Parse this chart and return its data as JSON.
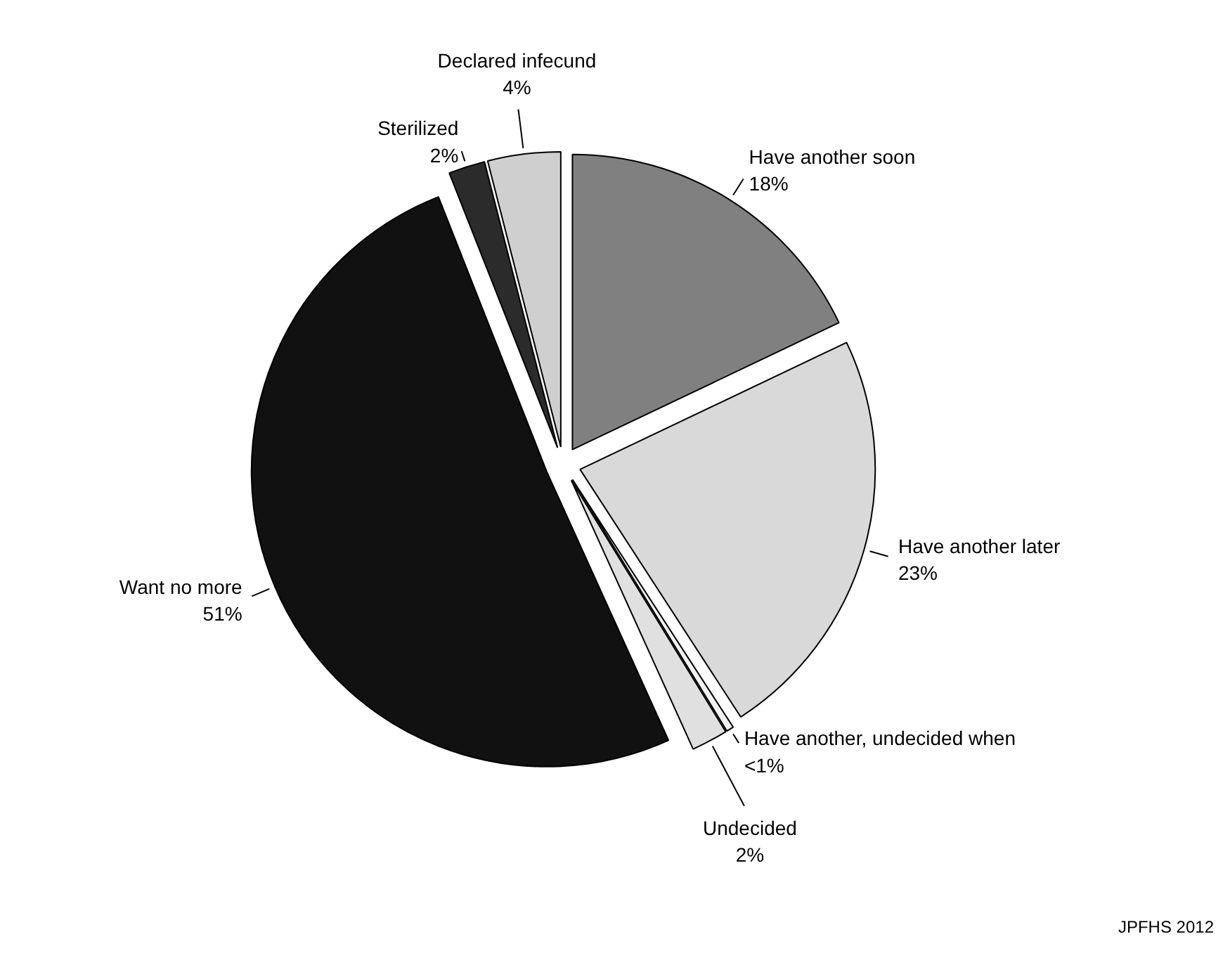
{
  "chart_data": {
    "type": "pie",
    "categories": [
      "Have another soon",
      "Have another later",
      "Have another, undecided when",
      "Undecided",
      "Want no more",
      "Sterilized",
      "Declared infecund"
    ],
    "values": [
      18,
      23,
      0.4,
      2,
      51,
      2,
      4
    ],
    "value_labels": [
      "18%",
      "23%",
      "<1%",
      "2%",
      "51%",
      "2%",
      "4%"
    ],
    "colors": [
      "#808080",
      "#d9d9d9",
      "#f2f2f2",
      "#e0e0e0",
      "#111111",
      "#2b2b2b",
      "#cfcfcf"
    ],
    "annotations": [
      "JPFHS 2012"
    ]
  }
}
